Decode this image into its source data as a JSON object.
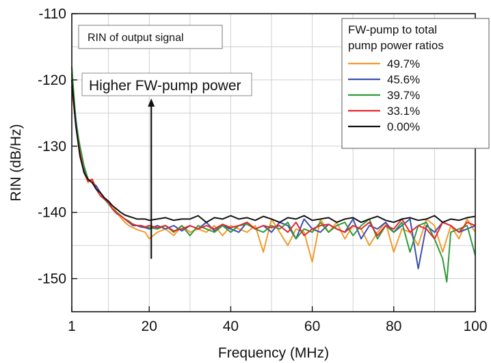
{
  "chart_data": {
    "type": "line",
    "xlabel": "Frequency (MHz)",
    "ylabel": "RIN (dB/Hz)",
    "xlim": [
      1,
      100
    ],
    "ylim": [
      -155,
      -110
    ],
    "x_ticks": [
      {
        "value": 1,
        "label": "1"
      },
      {
        "value": 20,
        "label": "20"
      },
      {
        "value": 40,
        "label": "40"
      },
      {
        "value": 60,
        "label": "60"
      },
      {
        "value": 80,
        "label": "80"
      },
      {
        "value": 100,
        "label": "100"
      }
    ],
    "y_ticks": [
      {
        "value": -110,
        "label": "-110"
      },
      {
        "value": -120,
        "label": "-120"
      },
      {
        "value": -130,
        "label": "-130"
      },
      {
        "value": -140,
        "label": "-140"
      },
      {
        "value": -150,
        "label": "-150"
      }
    ],
    "grid": true,
    "legend": {
      "title_lines": [
        "FW-pump to total",
        "pump power ratios"
      ],
      "placement": "top-right"
    },
    "annotations": {
      "box_label": "RIN of output signal",
      "arrow_label": "Higher FW-pump power",
      "arrow": {
        "x": 20.5,
        "y_from": -147,
        "y_to": -123
      }
    },
    "series": [
      {
        "name": "49.7%",
        "color": "#f39a2b",
        "x": [
          1,
          2,
          3,
          4,
          5,
          6,
          7,
          8,
          9,
          10,
          11,
          12,
          13,
          14,
          15,
          16,
          17,
          18,
          19,
          20,
          22,
          24,
          26,
          28,
          30,
          32,
          34,
          36,
          38,
          40,
          42,
          44,
          46,
          48,
          50,
          52,
          54,
          56,
          58,
          60,
          62,
          64,
          66,
          68,
          70,
          72,
          74,
          76,
          78,
          80,
          82,
          84,
          86,
          88,
          90,
          92,
          94,
          96,
          98,
          100
        ],
        "y": [
          -119,
          -127,
          -131,
          -134,
          -135.5,
          -135,
          -136.5,
          -137,
          -138,
          -138.5,
          -139,
          -140,
          -140.8,
          -141.5,
          -142,
          -142.3,
          -142.6,
          -142.8,
          -143,
          -144,
          -143,
          -142.5,
          -143.5,
          -142,
          -143,
          -142.5,
          -143,
          -142,
          -143.5,
          -142,
          -142.5,
          -143,
          -142,
          -146,
          -141,
          -143,
          -145,
          -142.5,
          -143,
          -147.5,
          -141,
          -143,
          -141.5,
          -144,
          -142,
          -142.5,
          -145,
          -143,
          -141.5,
          -146,
          -142.5,
          -143,
          -145,
          -141,
          -142,
          -146,
          -142,
          -144,
          -141,
          -143
        ]
      },
      {
        "name": "45.6%",
        "color": "#3a4fb0",
        "x": [
          1,
          2,
          3,
          4,
          5,
          6,
          7,
          8,
          9,
          10,
          11,
          12,
          13,
          14,
          15,
          16,
          17,
          18,
          19,
          20,
          22,
          24,
          26,
          28,
          30,
          32,
          34,
          36,
          38,
          40,
          42,
          44,
          46,
          48,
          50,
          52,
          54,
          56,
          58,
          60,
          62,
          64,
          66,
          68,
          70,
          72,
          74,
          76,
          78,
          80,
          82,
          84,
          86,
          88,
          90,
          92,
          94,
          96,
          98,
          100
        ],
        "y": [
          -120,
          -126,
          -130.5,
          -133.5,
          -135,
          -135.5,
          -136,
          -137,
          -138,
          -138.5,
          -139.5,
          -140,
          -140.5,
          -141,
          -141.5,
          -142,
          -142,
          -142.2,
          -142.3,
          -142.5,
          -142,
          -142.5,
          -142,
          -142.8,
          -142,
          -142.5,
          -141.5,
          -142.8,
          -142,
          -142.5,
          -143,
          -141.5,
          -142.5,
          -142,
          -143,
          -141.5,
          -142,
          -144,
          -141,
          -142.5,
          -143,
          -141.8,
          -142.5,
          -143,
          -141,
          -144,
          -142,
          -142.5,
          -141.5,
          -143,
          -142,
          -141,
          -148.5,
          -142,
          -143,
          -141.5,
          -142,
          -143,
          -142.5,
          -142
        ]
      },
      {
        "name": "39.7%",
        "color": "#2e9a3c",
        "x": [
          1,
          2,
          3,
          4,
          5,
          6,
          7,
          8,
          9,
          10,
          11,
          12,
          13,
          14,
          15,
          16,
          17,
          18,
          19,
          20,
          22,
          24,
          26,
          28,
          30,
          32,
          34,
          36,
          38,
          40,
          42,
          44,
          46,
          48,
          50,
          52,
          54,
          56,
          58,
          60,
          62,
          64,
          66,
          68,
          70,
          72,
          74,
          76,
          78,
          80,
          82,
          84,
          86,
          88,
          90,
          92,
          93,
          94,
          96,
          98,
          100
        ],
        "y": [
          -118,
          -126.5,
          -130,
          -133,
          -135,
          -135.5,
          -136.5,
          -137,
          -138,
          -138.7,
          -139.5,
          -140,
          -140.5,
          -141,
          -141.3,
          -141.8,
          -142,
          -142,
          -142.2,
          -142.3,
          -142.5,
          -142,
          -143,
          -142,
          -143.5,
          -142,
          -142.5,
          -143,
          -142,
          -143,
          -142,
          -141.8,
          -142.5,
          -143,
          -142,
          -142.5,
          -141.5,
          -144,
          -142.5,
          -143,
          -141.5,
          -143,
          -142,
          -141.5,
          -143.5,
          -142,
          -141,
          -144,
          -142,
          -143,
          -141.5,
          -146,
          -142,
          -141.5,
          -144,
          -147,
          -150.5,
          -143,
          -142.5,
          -142,
          -146.5
        ]
      },
      {
        "name": "33.1%",
        "color": "#e5252b",
        "x": [
          1,
          2,
          3,
          4,
          5,
          6,
          7,
          8,
          9,
          10,
          11,
          12,
          13,
          14,
          15,
          16,
          17,
          18,
          19,
          20,
          22,
          24,
          26,
          28,
          30,
          32,
          34,
          36,
          38,
          40,
          42,
          44,
          46,
          48,
          50,
          52,
          54,
          56,
          58,
          60,
          62,
          64,
          66,
          68,
          70,
          72,
          74,
          76,
          78,
          80,
          82,
          84,
          86,
          88,
          90,
          92,
          94,
          96,
          98,
          100
        ],
        "y": [
          -121,
          -127,
          -131,
          -134,
          -135.3,
          -135,
          -136.5,
          -137.5,
          -138,
          -138.5,
          -139.5,
          -140.2,
          -140.5,
          -141,
          -141.5,
          -141.8,
          -142,
          -142,
          -142.2,
          -142,
          -142.3,
          -142,
          -142.8,
          -142.5,
          -142,
          -142.5,
          -142,
          -142.5,
          -141.8,
          -142.3,
          -142,
          -141.5,
          -142.5,
          -142,
          -142.3,
          -142,
          -143,
          -141.5,
          -143.5,
          -142.5,
          -142,
          -141.8,
          -142.5,
          -143,
          -142,
          -142.5,
          -141.5,
          -143.5,
          -142,
          -142.5,
          -141,
          -143,
          -142,
          -142.5,
          -144,
          -141.5,
          -142,
          -143,
          -141.5,
          -142
        ]
      },
      {
        "name": "0.00%",
        "color": "#111111",
        "x": [
          1,
          2,
          3,
          4,
          5,
          6,
          7,
          8,
          9,
          10,
          11,
          12,
          13,
          14,
          15,
          16,
          17,
          18,
          19,
          20,
          22,
          24,
          26,
          28,
          30,
          32,
          34,
          36,
          38,
          40,
          42,
          44,
          46,
          48,
          50,
          52,
          54,
          56,
          58,
          60,
          62,
          64,
          66,
          68,
          70,
          72,
          74,
          76,
          78,
          80,
          82,
          84,
          86,
          88,
          90,
          92,
          94,
          96,
          98,
          100
        ],
        "y": [
          -120,
          -127,
          -131.5,
          -134,
          -135,
          -135.5,
          -136.5,
          -137,
          -137.8,
          -138.3,
          -139,
          -139.5,
          -140,
          -140.4,
          -140.6,
          -140.8,
          -141,
          -141,
          -141,
          -141.2,
          -141,
          -140.8,
          -141.2,
          -141,
          -141,
          -140.5,
          -141.5,
          -140.8,
          -141,
          -140.5,
          -141,
          -140.8,
          -141.2,
          -140.6,
          -141,
          -141.5,
          -140.8,
          -141,
          -140.5,
          -141.2,
          -141,
          -140.8,
          -141.5,
          -141,
          -140.8,
          -141.5,
          -141,
          -140.6,
          -141.2,
          -141.5,
          -141,
          -140.8,
          -141.2,
          -141,
          -140.5,
          -141.5,
          -141,
          -141.2,
          -140.8,
          -140.6
        ]
      }
    ]
  }
}
